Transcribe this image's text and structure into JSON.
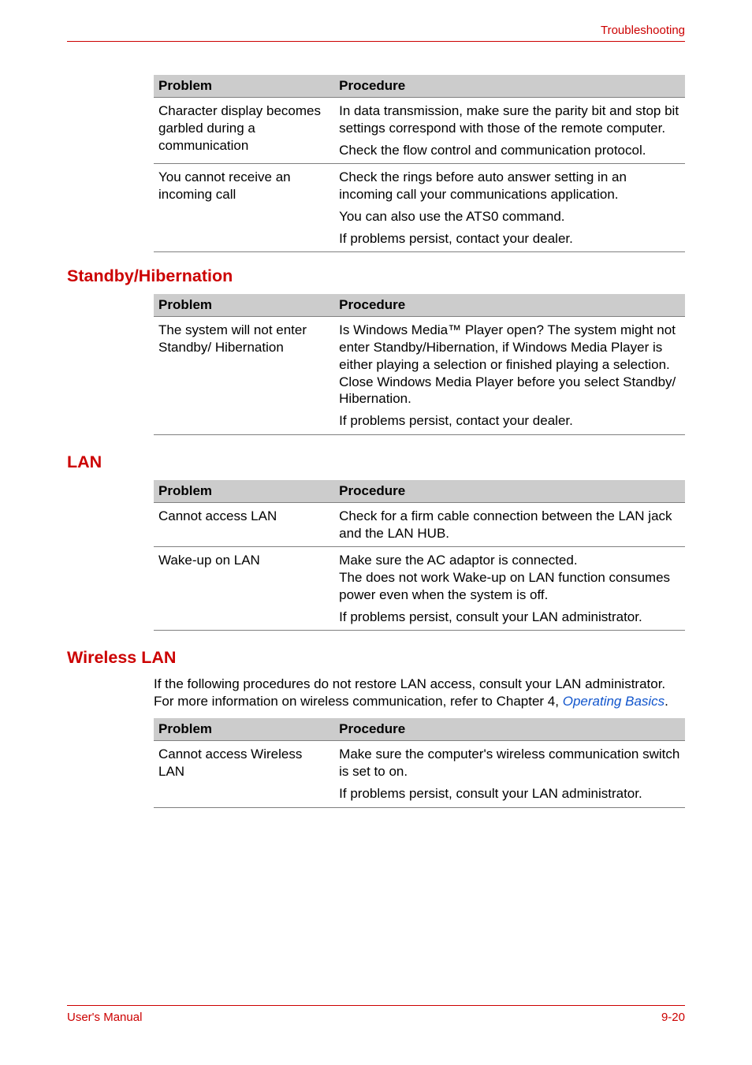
{
  "colors": {
    "accent": "#cc0000",
    "link": "#1155cc",
    "table_header_bg": "#cccccc",
    "table_border": "#808080",
    "text": "#000000",
    "background": "#ffffff"
  },
  "typography": {
    "body_fontsize_pt": 13,
    "heading_fontsize_pt": 16,
    "header_footer_fontsize_pt": 11,
    "font_family": "Arial"
  },
  "header": {
    "category": "Troubleshooting"
  },
  "tables": {
    "modem": {
      "columns": [
        "Problem",
        "Procedure"
      ],
      "rows": [
        {
          "problem": "Character display becomes garbled during a communication",
          "procedure": [
            "In data transmission, make sure the parity bit and stop bit settings correspond with those of the remote computer.",
            "Check the flow control and communication protocol."
          ]
        },
        {
          "problem": "You cannot receive an incoming call",
          "procedure": [
            "Check the rings before auto answer setting in an incoming call your communications application.",
            "You can also use the ATS0 command.",
            "If problems persist, contact your dealer."
          ]
        }
      ]
    },
    "standby": {
      "heading": "Standby/Hibernation",
      "columns": [
        "Problem",
        "Procedure"
      ],
      "rows": [
        {
          "problem": "The system will not enter Standby/ Hibernation",
          "procedure": [
            "Is Windows Media™ Player open? The system might not enter Standby/Hibernation, if Windows Media Player is either playing a selection or finished playing a selection. Close Windows Media Player before you select Standby/ Hibernation.",
            "If problems persist, contact your dealer."
          ]
        }
      ]
    },
    "lan": {
      "heading": "LAN",
      "columns": [
        "Problem",
        "Procedure"
      ],
      "rows": [
        {
          "problem": "Cannot access LAN",
          "procedure": [
            "Check for a firm cable connection between the LAN jack and the LAN HUB."
          ]
        },
        {
          "problem": "Wake-up on LAN",
          "procedure": [
            "Make sure the AC adaptor is connected.\nThe does not work Wake-up on LAN function consumes power even when the system is off.",
            "If problems persist, consult your LAN administrator."
          ]
        }
      ]
    },
    "wlan": {
      "heading": "Wireless LAN",
      "intro_pre": "If the following procedures do not restore LAN access, consult your LAN administrator. For more information on wireless communication, refer to Chapter 4, ",
      "intro_link": "Operating Basics",
      "intro_post": ".",
      "columns": [
        "Problem",
        "Procedure"
      ],
      "rows": [
        {
          "problem": "Cannot access Wireless LAN",
          "procedure": [
            "Make sure the computer's wireless communication switch is set to on.",
            "If problems persist, consult your LAN administrator."
          ]
        }
      ]
    }
  },
  "footer": {
    "left": "User's Manual",
    "right": "9-20"
  }
}
